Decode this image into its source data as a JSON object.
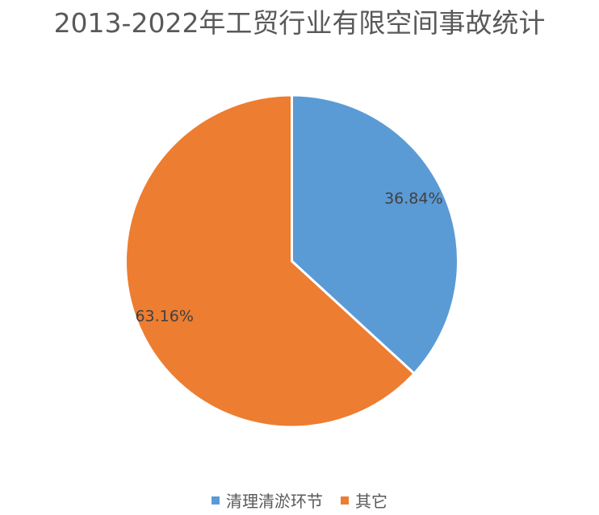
{
  "chart_data": {
    "type": "pie",
    "title": "2013-2022年工贸行业有限空间事故统计",
    "slices": [
      {
        "name": "清理清淤环节",
        "value": 36.84,
        "label": "36.84%",
        "color": "#5B9BD5"
      },
      {
        "name": "其它",
        "value": 63.16,
        "label": "63.16%",
        "color": "#ED7D31"
      }
    ],
    "legend_position": "bottom"
  }
}
